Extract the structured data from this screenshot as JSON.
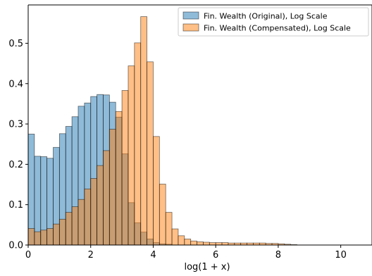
{
  "chart_data": {
    "type": "bar",
    "title": "",
    "xlabel": "log(1 + x)",
    "ylabel": "",
    "xlim": [
      0,
      11
    ],
    "ylim": [
      0,
      0.595
    ],
    "grid": false,
    "legend_position": "top-right",
    "xticks": [
      0,
      2,
      4,
      6,
      8,
      10
    ],
    "yticks": [
      0.0,
      0.1,
      0.2,
      0.3,
      0.4,
      0.5
    ],
    "ytick_labels": [
      "0.0",
      "0.1",
      "0.2",
      "0.3",
      "0.4",
      "0.5"
    ],
    "bin_width": 0.2,
    "series": [
      {
        "name": "Fin. Wealth (Original), Log Scale",
        "color": "#1f77b4",
        "bins": [
          [
            0.0,
            0.275
          ],
          [
            0.2,
            0.22
          ],
          [
            0.4,
            0.219
          ],
          [
            0.6,
            0.215
          ],
          [
            0.8,
            0.242
          ],
          [
            1.0,
            0.276
          ],
          [
            1.2,
            0.294
          ],
          [
            1.4,
            0.318
          ],
          [
            1.6,
            0.344
          ],
          [
            1.8,
            0.352
          ],
          [
            2.0,
            0.368
          ],
          [
            2.2,
            0.373
          ],
          [
            2.4,
            0.372
          ],
          [
            2.6,
            0.354
          ],
          [
            2.8,
            0.317
          ],
          [
            3.0,
            0.226
          ],
          [
            3.2,
            0.105
          ],
          [
            3.4,
            0.055
          ],
          [
            3.6,
            0.032
          ],
          [
            3.8,
            0.015
          ],
          [
            4.0,
            0.006
          ],
          [
            4.2,
            0.003
          ],
          [
            4.4,
            0.002
          ]
        ]
      },
      {
        "name": "Fin. Wealth (Compensated), Log Scale",
        "color": "#ff7f0e",
        "bins": [
          [
            0.0,
            0.041
          ],
          [
            0.2,
            0.033
          ],
          [
            0.4,
            0.037
          ],
          [
            0.6,
            0.041
          ],
          [
            0.8,
            0.052
          ],
          [
            1.0,
            0.064
          ],
          [
            1.2,
            0.081
          ],
          [
            1.4,
            0.095
          ],
          [
            1.6,
            0.113
          ],
          [
            1.8,
            0.139
          ],
          [
            2.0,
            0.165
          ],
          [
            2.2,
            0.197
          ],
          [
            2.4,
            0.234
          ],
          [
            2.6,
            0.287
          ],
          [
            2.8,
            0.331
          ],
          [
            3.0,
            0.383
          ],
          [
            3.2,
            0.444
          ],
          [
            3.4,
            0.501
          ],
          [
            3.6,
            0.566
          ],
          [
            3.8,
            0.454
          ],
          [
            4.0,
            0.269
          ],
          [
            4.2,
            0.151
          ],
          [
            4.4,
            0.081
          ],
          [
            4.6,
            0.04
          ],
          [
            4.8,
            0.023
          ],
          [
            5.0,
            0.015
          ],
          [
            5.2,
            0.01
          ],
          [
            5.4,
            0.008
          ],
          [
            5.6,
            0.007
          ],
          [
            5.8,
            0.006
          ],
          [
            6.0,
            0.006
          ],
          [
            6.2,
            0.006
          ],
          [
            6.4,
            0.005
          ],
          [
            6.6,
            0.005
          ],
          [
            6.8,
            0.005
          ],
          [
            7.0,
            0.005
          ],
          [
            7.2,
            0.005
          ],
          [
            7.4,
            0.005
          ],
          [
            7.6,
            0.004
          ],
          [
            7.8,
            0.004
          ],
          [
            8.0,
            0.003
          ],
          [
            8.2,
            0.002
          ],
          [
            8.4,
            0.001
          ]
        ]
      }
    ]
  }
}
